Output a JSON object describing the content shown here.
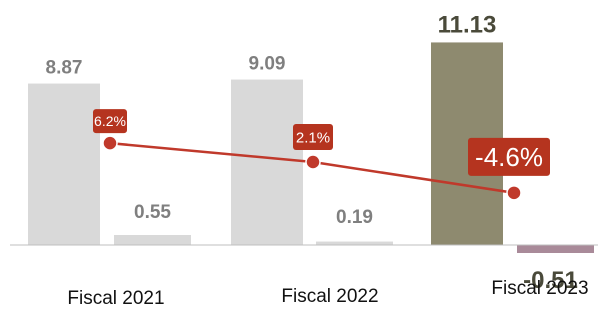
{
  "chart_data": {
    "type": "bar",
    "categories": [
      "Fiscal 2021",
      "Fiscal 2022",
      "Fiscal 2023"
    ],
    "series": [
      {
        "values": [
          8.87,
          9.09,
          11.13
        ],
        "labels": [
          "8.87",
          "9.09",
          "11.13"
        ]
      },
      {
        "values": [
          0.55,
          0.19,
          -0.51
        ],
        "labels": [
          "0.55",
          "0.19",
          "-0.51"
        ]
      }
    ],
    "line": {
      "values": [
        6.2,
        2.1,
        -4.6
      ],
      "labels": [
        "6.2%",
        "2.1%",
        "-4.6%"
      ]
    },
    "colors": {
      "bar": "#d9d9d9",
      "highlight_bar": "#8e8a6f",
      "negative_bar": "#a98a99",
      "line": "#c0392b",
      "label_box": "#b5341f",
      "value_text": "#7f7f7f",
      "highlight_text": "#4a4a3a"
    }
  }
}
